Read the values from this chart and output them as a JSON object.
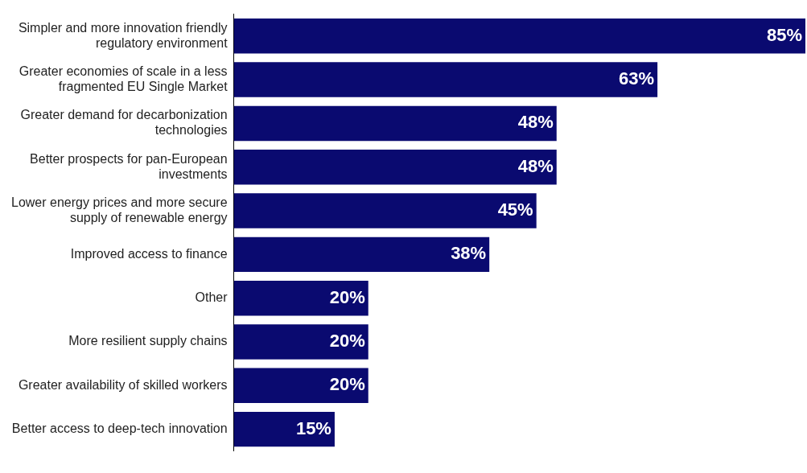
{
  "chart_data": {
    "type": "bar",
    "orientation": "horizontal",
    "categories": [
      "Simpler and more innovation friendly regulatory environment",
      "Greater economies of scale in a less fragmented EU Single Market",
      "Greater demand for decarbonization technologies",
      "Better prospects for pan-European investments",
      "Lower energy prices and more secure supply of renewable energy",
      "Improved access to finance",
      "Other",
      "More resilient supply chains",
      "Greater availability of skilled workers",
      "Better access to deep-tech innovation"
    ],
    "values": [
      85,
      63,
      48,
      48,
      45,
      38,
      20,
      20,
      20,
      15
    ],
    "value_labels": [
      "85%",
      "63%",
      "48%",
      "48%",
      "45%",
      "38%",
      "20%",
      "20%",
      "20%",
      "15%"
    ],
    "color": "#0a0a70",
    "grid": false,
    "legend": false
  }
}
